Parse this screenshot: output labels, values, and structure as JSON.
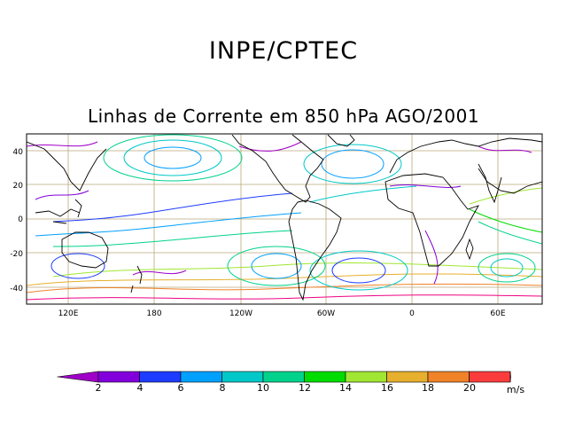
{
  "header": {
    "title": "INPE/CPTEC",
    "subtitle": "Linhas de Corrente em 850 hPa AGO/2001"
  },
  "map": {
    "lat_ticks": [
      "40",
      "20",
      "0",
      "-20",
      "-40"
    ],
    "lon_ticks": [
      "120E",
      "180",
      "120W",
      "60W",
      "0",
      "60E"
    ],
    "grid_color": "#b9a97a",
    "coast_color": "#000000"
  },
  "colorbar": {
    "labels": [
      "2",
      "4",
      "6",
      "8",
      "10",
      "12",
      "14",
      "16",
      "18",
      "20"
    ],
    "units": "m/s",
    "colors": [
      "#a000c8",
      "#8200dc",
      "#1e3cff",
      "#00a0ff",
      "#00c8c8",
      "#00d28c",
      "#00dc00",
      "#a0e632",
      "#e6af2d",
      "#f08228",
      "#fa3c3c",
      "#f00082"
    ]
  }
}
